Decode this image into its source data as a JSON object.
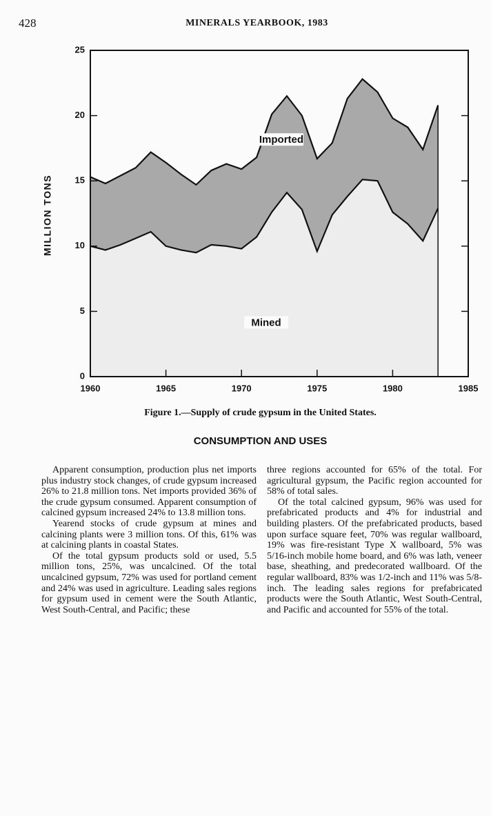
{
  "header": {
    "page_number": "428",
    "title": "MINERALS YEARBOOK, 1983"
  },
  "chart_data": {
    "type": "area",
    "stacked": true,
    "x": [
      1960,
      1961,
      1962,
      1963,
      1964,
      1965,
      1966,
      1967,
      1968,
      1969,
      1970,
      1971,
      1972,
      1973,
      1974,
      1975,
      1976,
      1977,
      1978,
      1979,
      1980,
      1981,
      1982,
      1983
    ],
    "series": [
      {
        "name": "Mined",
        "color": "#ededed",
        "values": [
          10.0,
          9.7,
          10.1,
          10.6,
          11.1,
          10.0,
          9.7,
          9.5,
          10.1,
          10.0,
          9.8,
          10.7,
          12.6,
          14.1,
          12.8,
          9.6,
          12.4,
          13.8,
          15.1,
          15.0,
          12.6,
          11.7,
          10.4,
          12.9
        ]
      },
      {
        "name": "Imported",
        "color": "#a9a9a9",
        "values": [
          5.3,
          5.1,
          5.3,
          5.4,
          6.1,
          6.4,
          5.8,
          5.2,
          5.7,
          6.3,
          6.1,
          6.1,
          7.5,
          7.4,
          7.2,
          7.1,
          5.5,
          7.5,
          7.7,
          6.8,
          7.2,
          7.4,
          7.0,
          7.9
        ]
      }
    ],
    "y_label": "MILLION TONS",
    "xlim": [
      1960,
      1985
    ],
    "xticks": [
      1960,
      1965,
      1970,
      1975,
      1980,
      1985
    ],
    "ylim": [
      0,
      25
    ],
    "yticks": [
      0,
      5,
      10,
      15,
      20,
      25
    ],
    "grid": false
  },
  "caption": "Figure 1.—Supply of crude gypsum in the United States.",
  "section_title": "CONSUMPTION AND USES",
  "columns": [
    [
      "Apparent consumption, production plus net imports plus industry stock changes, of crude gypsum increased 26% to 21.8 million tons. Net imports provided 36% of the crude gypsum consumed. Apparent consumption of calcined gypsum increased 24% to 13.8 million tons.",
      "Yearend stocks of crude gypsum at mines and calcining plants were 3 million tons. Of this, 61% was at calcining plants in coastal States.",
      "Of the total gypsum products sold or used, 5.5 million tons, 25%, was uncalcined. Of the total uncalcined gypsum, 72% was used for portland cement and 24% was used in agriculture. Leading sales regions for gypsum used in cement were the South Atlantic, West South-Central, and Pacific; these"
    ],
    [
      "three regions accounted for 65% of the total. For agricultural gypsum, the Pacific region accounted for 58% of total sales.",
      "Of the total calcined gypsum, 96% was used for prefabricated products and 4% for industrial and building plasters. Of the prefabricated products, based upon surface square feet, 70% was regular wallboard, 19% was fire-resistant Type X wallboard, 5% was 5/16-inch mobile home board, and 6% was lath, veneer base, sheathing, and predecorated wallboard. Of the regular wallboard, 83% was 1/2-inch and 11% was 5/8-inch. The leading sales regions for prefabricated products were the South Atlantic, West South-Central, and Pacific and accounted for 55% of the total."
    ]
  ]
}
